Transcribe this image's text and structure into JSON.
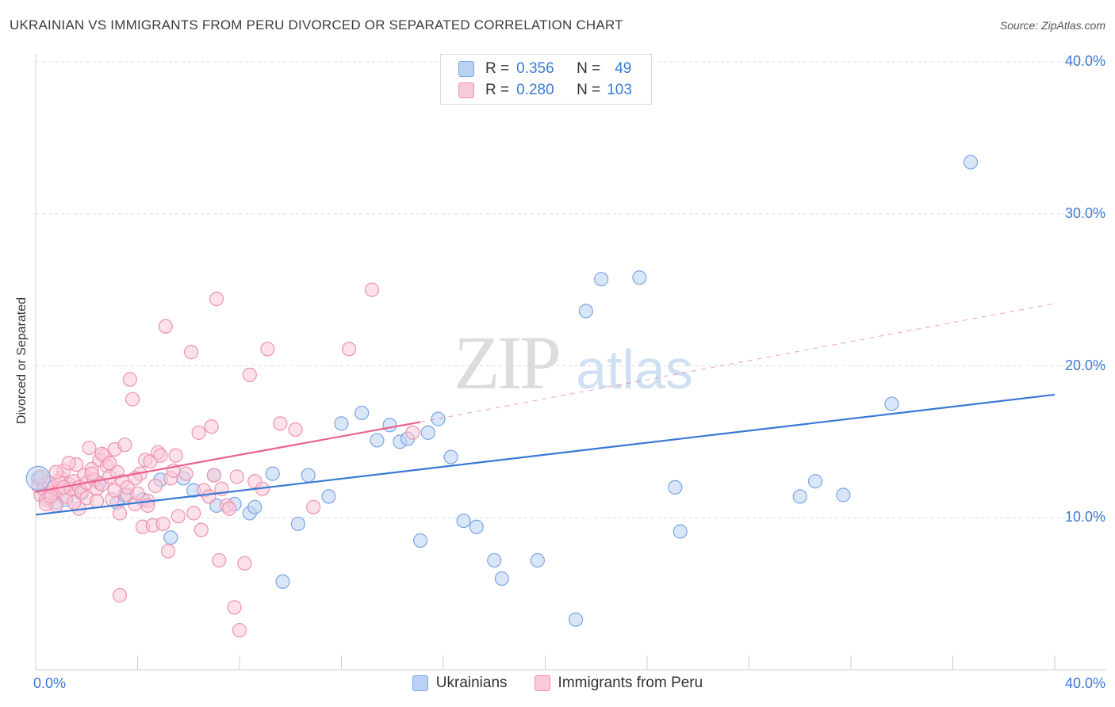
{
  "title": "UKRAINIAN VS IMMIGRANTS FROM PERU DIVORCED OR SEPARATED CORRELATION CHART",
  "source": "Source: ZipAtlas.com",
  "watermark": {
    "zip": "ZIP",
    "atlas": "atlas"
  },
  "legend": {
    "r_label": "R =",
    "n_label": "N =",
    "rows": [
      {
        "r": "0.356",
        "n": "49",
        "fill": "#b9d2f3",
        "stroke": "#7aa6e6"
      },
      {
        "r": "0.280",
        "n": "103",
        "fill": "#f9c9d7",
        "stroke": "#ee93b0"
      }
    ]
  },
  "bottom_legend": [
    "Ukrainians",
    "Immigrants from Peru"
  ],
  "chart_data": {
    "type": "scatter",
    "ylabel": "Divorced or Separated",
    "xlim": [
      0,
      40
    ],
    "ylim": [
      0,
      40
    ],
    "x_tick_labels": [
      "0.0%",
      "40.0%"
    ],
    "y_ticks": [
      {
        "value": 10,
        "label": "10.0%"
      },
      {
        "value": 20,
        "label": "20.0%"
      },
      {
        "value": 30,
        "label": "30.0%"
      },
      {
        "value": 40,
        "label": "40.0%"
      }
    ],
    "series": [
      {
        "name": "Ukrainians",
        "color": "#3a78d6",
        "fill": "#b9d2f3",
        "stroke": "#7aa6e6",
        "trend": {
          "x": [
            0,
            40
          ],
          "y": [
            10.2,
            18.1
          ]
        },
        "points": [
          [
            0.1,
            12.6
          ],
          [
            0.5,
            11.3
          ],
          [
            0.8,
            11.0
          ],
          [
            1.2,
            11.2
          ],
          [
            1.8,
            11.6
          ],
          [
            2.5,
            12.3
          ],
          [
            3.2,
            11.0
          ],
          [
            3.5,
            11.5
          ],
          [
            4.2,
            11.2
          ],
          [
            4.9,
            12.5
          ],
          [
            5.3,
            8.7
          ],
          [
            5.8,
            12.6
          ],
          [
            6.2,
            11.8
          ],
          [
            7.0,
            12.8
          ],
          [
            7.1,
            10.8
          ],
          [
            7.8,
            10.9
          ],
          [
            8.4,
            10.3
          ],
          [
            8.6,
            10.7
          ],
          [
            9.3,
            12.9
          ],
          [
            9.7,
            5.8
          ],
          [
            10.3,
            9.6
          ],
          [
            10.7,
            12.8
          ],
          [
            11.5,
            11.4
          ],
          [
            12.0,
            16.2
          ],
          [
            12.8,
            16.9
          ],
          [
            13.4,
            15.1
          ],
          [
            13.9,
            16.1
          ],
          [
            14.3,
            15.0
          ],
          [
            14.6,
            15.2
          ],
          [
            15.1,
            8.5
          ],
          [
            15.4,
            15.6
          ],
          [
            15.8,
            16.5
          ],
          [
            16.3,
            14.0
          ],
          [
            16.8,
            9.8
          ],
          [
            17.3,
            9.4
          ],
          [
            18.0,
            7.2
          ],
          [
            18.3,
            6.0
          ],
          [
            19.7,
            7.2
          ],
          [
            21.2,
            3.3
          ],
          [
            21.6,
            23.6
          ],
          [
            22.2,
            25.7
          ],
          [
            23.7,
            25.8
          ],
          [
            25.1,
            12.0
          ],
          [
            25.3,
            9.1
          ],
          [
            30.0,
            11.4
          ],
          [
            30.6,
            12.4
          ],
          [
            31.7,
            11.5
          ],
          [
            33.6,
            17.5
          ],
          [
            36.7,
            33.4
          ]
        ]
      },
      {
        "name": "Immigrants from Peru",
        "color": "#e8618c",
        "fill": "#f9c9d7",
        "stroke": "#ee93b0",
        "trend": {
          "x": [
            0,
            15.1
          ],
          "y": [
            11.7,
            16.3
          ]
        },
        "trend_ext": {
          "x": [
            15.1,
            40
          ],
          "y": [
            16.3,
            24.1
          ]
        },
        "points": [
          [
            0.1,
            12.1
          ],
          [
            0.2,
            11.5
          ],
          [
            0.3,
            11.9
          ],
          [
            0.4,
            11.2
          ],
          [
            0.5,
            12.3
          ],
          [
            0.6,
            11.6
          ],
          [
            0.7,
            12.0
          ],
          [
            0.8,
            10.8
          ],
          [
            0.9,
            11.8
          ],
          [
            1.0,
            12.6
          ],
          [
            1.1,
            13.1
          ],
          [
            1.2,
            11.4
          ],
          [
            1.3,
            12.2
          ],
          [
            1.4,
            11.9
          ],
          [
            1.5,
            12.4
          ],
          [
            1.6,
            13.5
          ],
          [
            1.7,
            12.0
          ],
          [
            1.8,
            11.7
          ],
          [
            1.9,
            12.8
          ],
          [
            2.0,
            12.3
          ],
          [
            2.1,
            14.6
          ],
          [
            2.2,
            13.2
          ],
          [
            2.3,
            12.5
          ],
          [
            2.4,
            11.9
          ],
          [
            2.5,
            13.8
          ],
          [
            2.6,
            12.2
          ],
          [
            2.7,
            14.1
          ],
          [
            2.8,
            13.4
          ],
          [
            2.9,
            12.7
          ],
          [
            3.0,
            11.2
          ],
          [
            3.1,
            14.5
          ],
          [
            3.2,
            13.0
          ],
          [
            3.3,
            10.3
          ],
          [
            3.4,
            12.4
          ],
          [
            3.5,
            14.8
          ],
          [
            3.6,
            11.5
          ],
          [
            3.7,
            19.1
          ],
          [
            3.8,
            17.8
          ],
          [
            3.9,
            10.9
          ],
          [
            4.0,
            11.6
          ],
          [
            4.1,
            12.9
          ],
          [
            4.2,
            9.4
          ],
          [
            4.3,
            13.8
          ],
          [
            4.4,
            11.1
          ],
          [
            4.5,
            13.7
          ],
          [
            4.6,
            9.5
          ],
          [
            4.7,
            12.1
          ],
          [
            4.8,
            14.3
          ],
          [
            4.9,
            14.1
          ],
          [
            5.0,
            9.6
          ],
          [
            5.1,
            22.6
          ],
          [
            5.2,
            7.8
          ],
          [
            5.3,
            12.6
          ],
          [
            5.4,
            13.1
          ],
          [
            5.5,
            14.1
          ],
          [
            5.9,
            12.9
          ],
          [
            6.1,
            20.9
          ],
          [
            6.2,
            10.3
          ],
          [
            6.4,
            15.6
          ],
          [
            6.5,
            9.2
          ],
          [
            6.6,
            11.8
          ],
          [
            6.9,
            16.0
          ],
          [
            7.0,
            12.8
          ],
          [
            7.1,
            24.4
          ],
          [
            7.2,
            7.2
          ],
          [
            7.3,
            11.9
          ],
          [
            7.5,
            10.8
          ],
          [
            7.6,
            10.6
          ],
          [
            7.8,
            4.1
          ],
          [
            7.9,
            12.7
          ],
          [
            8.0,
            2.6
          ],
          [
            8.2,
            7.0
          ],
          [
            8.4,
            19.4
          ],
          [
            8.6,
            12.4
          ],
          [
            8.9,
            11.9
          ],
          [
            9.1,
            21.1
          ],
          [
            9.6,
            16.2
          ],
          [
            10.2,
            15.8
          ],
          [
            10.9,
            10.7
          ],
          [
            12.3,
            21.1
          ],
          [
            13.2,
            25.0
          ],
          [
            14.8,
            15.6
          ],
          [
            3.3,
            4.9
          ],
          [
            2.0,
            11.3
          ],
          [
            1.3,
            13.6
          ],
          [
            0.9,
            12.4
          ],
          [
            0.4,
            10.9
          ],
          [
            2.6,
            14.2
          ],
          [
            3.9,
            12.6
          ],
          [
            5.6,
            10.1
          ],
          [
            6.8,
            11.4
          ],
          [
            1.7,
            10.6
          ],
          [
            0.2,
            12.7
          ],
          [
            2.9,
            13.6
          ],
          [
            4.4,
            10.8
          ],
          [
            1.5,
            11.0
          ],
          [
            0.6,
            11.4
          ],
          [
            3.6,
            12.0
          ],
          [
            2.2,
            12.9
          ],
          [
            1.1,
            12.0
          ],
          [
            0.8,
            13.0
          ],
          [
            2.4,
            11.1
          ],
          [
            3.1,
            11.8
          ]
        ]
      }
    ]
  }
}
